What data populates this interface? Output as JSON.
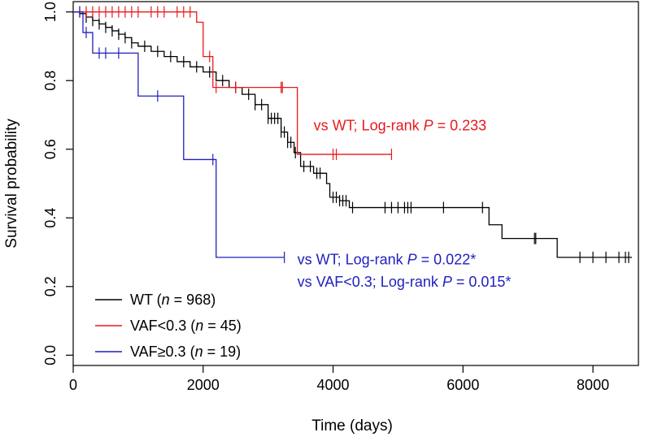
{
  "chart_data": {
    "type": "line",
    "title": "",
    "xlabel": "Time (days)",
    "ylabel": "Survival probability",
    "xlim": [
      0,
      8700
    ],
    "ylim": [
      -0.03,
      1.03
    ],
    "x_ticks": [
      0,
      2000,
      4000,
      6000,
      8000
    ],
    "y_ticks": [
      0.0,
      0.2,
      0.4,
      0.6,
      0.8,
      1.0
    ],
    "x_tick_labels": [
      "0",
      "2000",
      "4000",
      "6000",
      "8000"
    ],
    "y_tick_labels": [
      "0.0",
      "0.2",
      "0.4",
      "0.6",
      "0.8",
      "1.0"
    ],
    "grid": false,
    "legend_position": "bottom-left",
    "series": [
      {
        "key": "wt",
        "legend": {
          "pre": "WT (",
          "n": "n",
          "post": " = 968)"
        },
        "color": "#000000",
        "step_points": [
          [
            0,
            1.0
          ],
          [
            100,
            0.995
          ],
          [
            200,
            0.985
          ],
          [
            300,
            0.975
          ],
          [
            400,
            0.965
          ],
          [
            500,
            0.955
          ],
          [
            600,
            0.945
          ],
          [
            700,
            0.935
          ],
          [
            800,
            0.925
          ],
          [
            900,
            0.91
          ],
          [
            1000,
            0.9
          ],
          [
            1200,
            0.885
          ],
          [
            1400,
            0.87
          ],
          [
            1600,
            0.855
          ],
          [
            1800,
            0.84
          ],
          [
            2000,
            0.825
          ],
          [
            2200,
            0.8
          ],
          [
            2400,
            0.78
          ],
          [
            2600,
            0.76
          ],
          [
            2800,
            0.73
          ],
          [
            3000,
            0.69
          ],
          [
            3200,
            0.65
          ],
          [
            3300,
            0.62
          ],
          [
            3400,
            0.59
          ],
          [
            3500,
            0.55
          ],
          [
            3700,
            0.53
          ],
          [
            3900,
            0.5
          ],
          [
            3950,
            0.46
          ],
          [
            4100,
            0.45
          ],
          [
            4250,
            0.43
          ],
          [
            6400,
            0.38
          ],
          [
            6600,
            0.34
          ],
          [
            7450,
            0.285
          ],
          [
            8600,
            0.285
          ]
        ],
        "censor_times": [
          200,
          300,
          400,
          500,
          600,
          700,
          800,
          900,
          1100,
          1300,
          1500,
          1700,
          1900,
          2100,
          2300,
          2500,
          2700,
          2800,
          2900,
          3000,
          3050,
          3100,
          3150,
          3200,
          3250,
          3300,
          3350,
          3420,
          3550,
          3650,
          3750,
          3800,
          4000,
          4050,
          4100,
          4150,
          4200,
          4300,
          4800,
          4900,
          5000,
          5100,
          5150,
          5200,
          5700,
          6300,
          7100,
          7120,
          7800,
          8000,
          8200,
          8400,
          8500,
          8550
        ]
      },
      {
        "key": "vaf_low",
        "legend": {
          "pre": "VAF<0.3 (",
          "n": "n",
          "post": " = 45)"
        },
        "color": "#e8191c",
        "step_points": [
          [
            0,
            1.0
          ],
          [
            1900,
            0.97
          ],
          [
            2000,
            0.87
          ],
          [
            2150,
            0.78
          ],
          [
            3450,
            0.585
          ],
          [
            4900,
            0.585
          ]
        ],
        "censor_times": [
          100,
          200,
          300,
          400,
          500,
          600,
          700,
          800,
          900,
          1000,
          1200,
          1300,
          1400,
          1600,
          1700,
          1800,
          2100,
          2200,
          2500,
          3200,
          3220,
          4000,
          4050,
          4900
        ]
      },
      {
        "key": "vaf_high",
        "legend": {
          "pre": "VAF≥0.3 (",
          "n": "n",
          "post": " = 19)"
        },
        "color": "#1f1fbf",
        "step_points": [
          [
            0,
            1.0
          ],
          [
            150,
            0.94
          ],
          [
            300,
            0.88
          ],
          [
            1000,
            0.755
          ],
          [
            1700,
            0.57
          ],
          [
            2200,
            0.285
          ],
          [
            3250,
            0.285
          ]
        ],
        "censor_times": [
          100,
          200,
          400,
          500,
          700,
          1300,
          2150,
          3250
        ]
      }
    ],
    "annotations": [
      {
        "key": "vaf_low_vs_wt",
        "text": "vs WT; Log-rank ",
        "p_label": "P",
        "p_value": " = 0.233",
        "color": "#e8191c",
        "x": 3700,
        "y": 0.655
      },
      {
        "key": "vaf_high_vs_wt",
        "text": "vs WT; Log-rank ",
        "p_label": "P",
        "p_value": " = 0.022*",
        "color": "#1f1fbf",
        "x": 3450,
        "y": 0.265
      },
      {
        "key": "vaf_high_vs_low",
        "text": "vs VAF<0.3; Log-rank ",
        "p_label": "P",
        "p_value": " = 0.015*",
        "color": "#1f1fbf",
        "x": 3450,
        "y": 0.2
      }
    ]
  }
}
